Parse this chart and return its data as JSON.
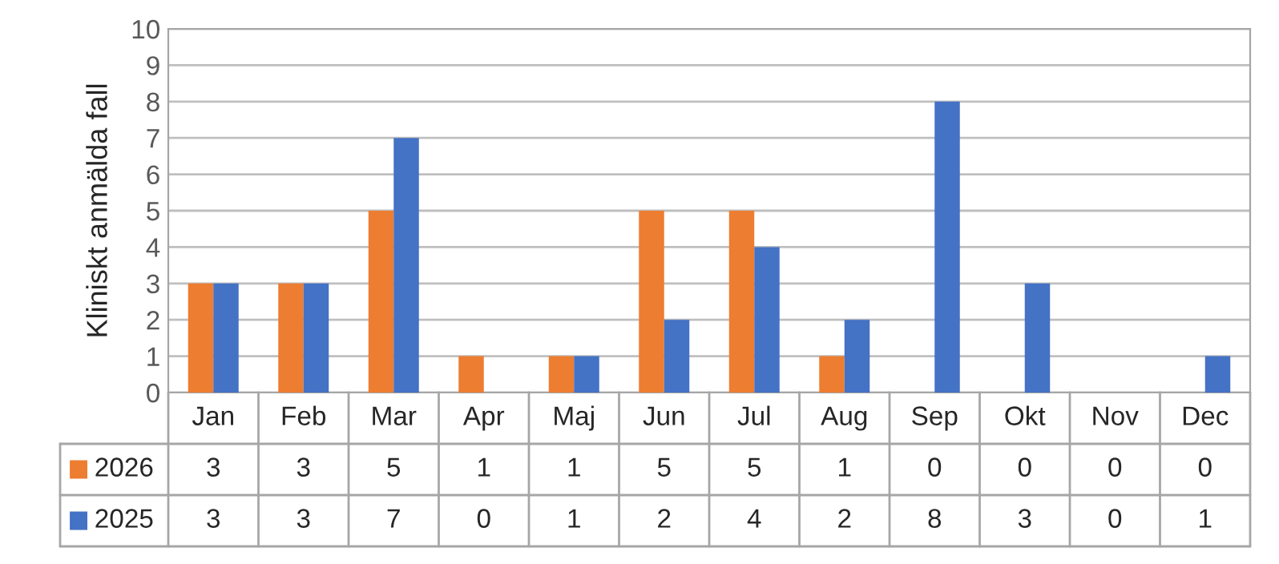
{
  "chart_data": {
    "type": "bar",
    "ylabel": "Kliniskt anmälda fall",
    "categories": [
      "Jan",
      "Feb",
      "Mar",
      "Apr",
      "Maj",
      "Jun",
      "Jul",
      "Aug",
      "Sep",
      "Okt",
      "Nov",
      "Dec"
    ],
    "series": [
      {
        "name": "2026",
        "color": "#ed7d31",
        "values": [
          3,
          3,
          5,
          1,
          1,
          5,
          5,
          1,
          0,
          0,
          0,
          0
        ]
      },
      {
        "name": "2025",
        "color": "#4472c4",
        "values": [
          3,
          3,
          7,
          0,
          1,
          2,
          4,
          2,
          8,
          3,
          0,
          1
        ]
      }
    ],
    "ylim": [
      0,
      10
    ],
    "yticks": [
      0,
      1,
      2,
      3,
      4,
      5,
      6,
      7,
      8,
      9,
      10
    ],
    "grid": "y",
    "legend": "bottom",
    "data_labels": true
  }
}
